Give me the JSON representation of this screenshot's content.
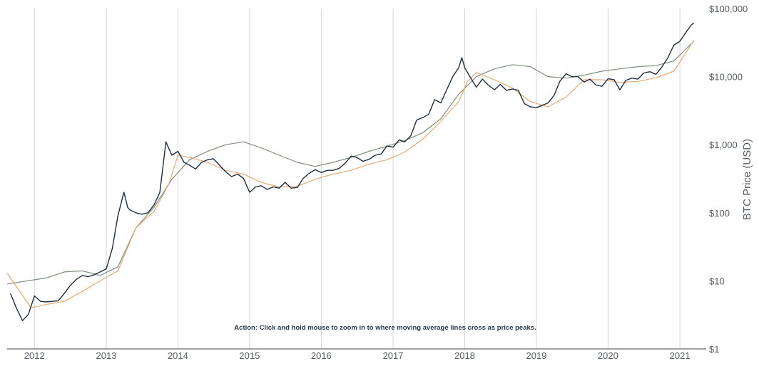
{
  "chart_data": {
    "type": "line",
    "ylabel": "BTC Price (USD)",
    "yscale": "log",
    "ylim": [
      1,
      100000
    ],
    "xlim": [
      "2011-08-15",
      "2021-05-15"
    ],
    "grid": {
      "vertical": true,
      "horizontal": false
    },
    "x_ticks": [
      "2012",
      "2013",
      "2014",
      "2015",
      "2016",
      "2017",
      "2018",
      "2019",
      "2020",
      "2021"
    ],
    "y_ticks": [
      {
        "value": 1,
        "label": "$1"
      },
      {
        "value": 10,
        "label": "$10"
      },
      {
        "value": 100,
        "label": "$100"
      },
      {
        "value": 1000,
        "label": "$1,000"
      },
      {
        "value": 10000,
        "label": "$10,000"
      },
      {
        "value": 100000,
        "label": "$100,000"
      }
    ],
    "annotation": "Action: Click and hold mouse to zoom in to where moving average lines cross as price peaks.",
    "series": [
      {
        "color": "#1f2d3d",
        "x": [
          "2011-09-01",
          "2011-10-01",
          "2011-11-01",
          "2011-12-01",
          "2012-01-01",
          "2012-02-01",
          "2012-03-01",
          "2012-04-01",
          "2012-05-01",
          "2012-06-01",
          "2012-07-01",
          "2012-08-01",
          "2012-09-01",
          "2012-10-01",
          "2012-11-01",
          "2012-12-01",
          "2013-01-01",
          "2013-02-01",
          "2013-03-01",
          "2013-04-01",
          "2013-04-20",
          "2013-05-01",
          "2013-06-01",
          "2013-07-01",
          "2013-08-01",
          "2013-09-01",
          "2013-10-01",
          "2013-11-01",
          "2013-12-01",
          "2014-01-01",
          "2014-02-01",
          "2014-03-01",
          "2014-04-01",
          "2014-05-01",
          "2014-06-01",
          "2014-07-01",
          "2014-08-01",
          "2014-09-01",
          "2014-10-01",
          "2014-11-01",
          "2014-12-01",
          "2015-01-01",
          "2015-02-01",
          "2015-03-01",
          "2015-04-01",
          "2015-05-01",
          "2015-06-01",
          "2015-07-01",
          "2015-08-01",
          "2015-09-01",
          "2015-10-01",
          "2015-11-01",
          "2015-12-01",
          "2016-01-01",
          "2016-02-01",
          "2016-03-01",
          "2016-04-01",
          "2016-05-01",
          "2016-06-01",
          "2016-07-01",
          "2016-08-01",
          "2016-09-01",
          "2016-10-01",
          "2016-11-01",
          "2016-12-01",
          "2017-01-01",
          "2017-02-01",
          "2017-03-01",
          "2017-04-01",
          "2017-05-01",
          "2017-06-01",
          "2017-07-01",
          "2017-08-01",
          "2017-09-01",
          "2017-10-01",
          "2017-11-01",
          "2017-12-01",
          "2017-12-17",
          "2018-01-01",
          "2018-02-01",
          "2018-03-01",
          "2018-04-01",
          "2018-05-01",
          "2018-06-01",
          "2018-07-01",
          "2018-08-01",
          "2018-09-01",
          "2018-10-01",
          "2018-11-01",
          "2018-12-01",
          "2019-01-01",
          "2019-02-01",
          "2019-03-01",
          "2019-04-01",
          "2019-05-01",
          "2019-06-01",
          "2019-07-01",
          "2019-08-01",
          "2019-09-01",
          "2019-10-01",
          "2019-11-01",
          "2019-12-01",
          "2020-01-01",
          "2020-02-01",
          "2020-03-01",
          "2020-04-01",
          "2020-05-01",
          "2020-06-01",
          "2020-07-01",
          "2020-08-01",
          "2020-09-01",
          "2020-10-01",
          "2020-11-01",
          "2020-12-01",
          "2021-01-01",
          "2021-02-01",
          "2021-03-01",
          "2021-03-13"
        ],
        "y": [
          6.5,
          4,
          2.6,
          3.2,
          6,
          5,
          4.9,
          5,
          5.1,
          6.5,
          8.5,
          10.5,
          12,
          11.5,
          12.3,
          13.5,
          15,
          30,
          90,
          200,
          120,
          110,
          100,
          95,
          100,
          130,
          200,
          1100,
          700,
          800,
          550,
          500,
          440,
          550,
          600,
          620,
          500,
          400,
          340,
          370,
          320,
          200,
          240,
          250,
          220,
          240,
          230,
          280,
          230,
          235,
          320,
          380,
          430,
          390,
          420,
          420,
          450,
          530,
          680,
          650,
          570,
          610,
          700,
          730,
          960,
          920,
          1180,
          1100,
          1350,
          2300,
          2500,
          2800,
          4600,
          4100,
          6400,
          10000,
          13500,
          19000,
          13500,
          9500,
          7000,
          9200,
          7500,
          6400,
          7700,
          6300,
          6600,
          6300,
          4000,
          3600,
          3500,
          3800,
          4100,
          5300,
          8600,
          11000,
          10000,
          10000,
          8300,
          9200,
          7500,
          7200,
          9300,
          9000,
          6400,
          8800,
          9500,
          9200,
          11300,
          11800,
          10800,
          13800,
          19000,
          29000,
          33000,
          45000,
          58000,
          61000
        ]
      },
      {
        "color": "#e3aa78",
        "x": [
          "2011-08-15",
          "2011-12-15",
          "2012-03-01",
          "2012-06-01",
          "2012-09-01",
          "2012-12-01",
          "2013-03-01",
          "2013-06-01",
          "2013-09-01",
          "2013-11-15",
          "2014-01-01",
          "2014-03-01",
          "2014-06-01",
          "2014-09-01",
          "2014-12-01",
          "2015-03-01",
          "2015-06-01",
          "2015-09-01",
          "2015-12-01",
          "2016-03-01",
          "2016-06-01",
          "2016-09-01",
          "2016-12-01",
          "2017-03-01",
          "2017-06-01",
          "2017-09-01",
          "2017-12-01",
          "2018-01-15",
          "2018-03-01",
          "2018-06-01",
          "2018-09-01",
          "2018-12-01",
          "2019-03-01",
          "2019-06-01",
          "2019-09-01",
          "2019-12-01",
          "2020-03-01",
          "2020-06-01",
          "2020-09-01",
          "2020-12-01",
          "2021-03-13"
        ],
        "y": [
          13,
          4,
          4.5,
          5,
          7,
          10,
          14,
          60,
          105,
          260,
          700,
          650,
          550,
          420,
          370,
          280,
          240,
          245,
          310,
          370,
          420,
          520,
          600,
          780,
          1200,
          2200,
          4300,
          8500,
          11500,
          9000,
          6800,
          4300,
          3600,
          5000,
          9000,
          9000,
          8200,
          8500,
          9600,
          12000,
          34000
        ]
      },
      {
        "color": "#7d8f7c",
        "x": [
          "2011-08-15",
          "2012-03-01",
          "2012-06-01",
          "2012-09-01",
          "2012-12-01",
          "2013-03-01",
          "2013-06-01",
          "2013-09-01",
          "2013-12-01",
          "2014-03-01",
          "2014-06-01",
          "2014-09-01",
          "2014-12-01",
          "2015-03-01",
          "2015-06-01",
          "2015-09-01",
          "2015-12-01",
          "2016-03-01",
          "2016-06-01",
          "2016-09-01",
          "2016-12-01",
          "2017-03-01",
          "2017-06-01",
          "2017-09-01",
          "2017-12-01",
          "2018-03-01",
          "2018-06-01",
          "2018-09-01",
          "2018-12-01",
          "2019-03-01",
          "2019-06-01",
          "2019-09-01",
          "2019-12-01",
          "2020-03-01",
          "2020-06-01",
          "2020-09-01",
          "2020-12-01",
          "2021-03-13"
        ],
        "y": [
          9,
          11,
          13.5,
          14,
          12,
          16,
          60,
          120,
          310,
          600,
          800,
          1000,
          1100,
          900,
          700,
          550,
          480,
          550,
          650,
          800,
          950,
          1150,
          1500,
          2400,
          5500,
          10000,
          13000,
          15000,
          14000,
          10000,
          9500,
          10500,
          12000,
          13000,
          14000,
          14500,
          17000,
          33000
        ]
      }
    ]
  }
}
